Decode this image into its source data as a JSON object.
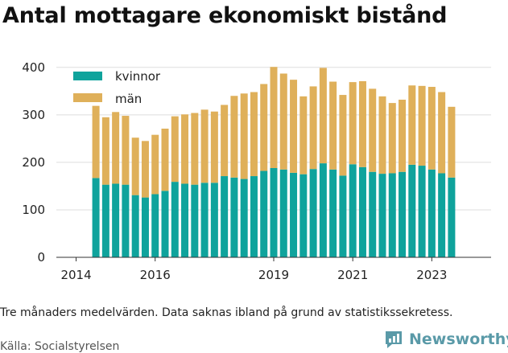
{
  "title": "Antal mottagare ekonomiskt bistånd",
  "caption": "Tre månaders medelvärden. Data saknas ibland på grund av statistikssekretess.",
  "source": "Källa: Socialstyrelsen",
  "brand": "Newsworthy",
  "colors": {
    "kvinnor": "#0fa39c",
    "man": "#dfb05a",
    "grid": "#dddddd",
    "brand": "#5a9aa8"
  },
  "chart_data": {
    "type": "bar",
    "stacked": true,
    "x_ticks": [
      {
        "label": "2014",
        "x": 2014.0
      },
      {
        "label": "2016",
        "x": 2016.0
      },
      {
        "label": "2019",
        "x": 2019.0
      },
      {
        "label": "2021",
        "x": 2021.0
      },
      {
        "label": "2023",
        "x": 2023.0
      }
    ],
    "xlim": [
      2013.5,
      2024.5
    ],
    "ylim": [
      0,
      420
    ],
    "y_ticks": [
      0,
      100,
      200,
      300,
      400
    ],
    "grid": true,
    "legend_position": "top-left",
    "x": [
      2014.5,
      2014.75,
      2015.0,
      2015.25,
      2015.5,
      2015.75,
      2016.0,
      2016.25,
      2016.5,
      2016.75,
      2017.0,
      2017.25,
      2017.5,
      2017.75,
      2018.0,
      2018.25,
      2018.5,
      2018.75,
      2019.0,
      2019.25,
      2019.5,
      2019.75,
      2020.0,
      2020.25,
      2020.5,
      2020.75,
      2021.0,
      2021.25,
      2021.5,
      2021.75,
      2022.0,
      2022.25,
      2022.5,
      2022.75,
      2023.0,
      2023.25,
      2023.5
    ],
    "series": [
      {
        "name": "kvinnor",
        "values": [
          167,
          153,
          155,
          153,
          131,
          126,
          133,
          140,
          159,
          155,
          153,
          157,
          157,
          171,
          168,
          165,
          171,
          182,
          188,
          185,
          178,
          175,
          186,
          198,
          185,
          172,
          196,
          190,
          180,
          176,
          177,
          180,
          195,
          193,
          185,
          177,
          168
        ]
      },
      {
        "name": "män",
        "values": [
          152,
          142,
          151,
          145,
          121,
          119,
          125,
          131,
          138,
          146,
          151,
          154,
          150,
          150,
          172,
          180,
          177,
          183,
          213,
          202,
          196,
          164,
          174,
          201,
          185,
          170,
          173,
          181,
          175,
          163,
          148,
          152,
          167,
          168,
          174,
          171,
          149
        ]
      }
    ]
  }
}
